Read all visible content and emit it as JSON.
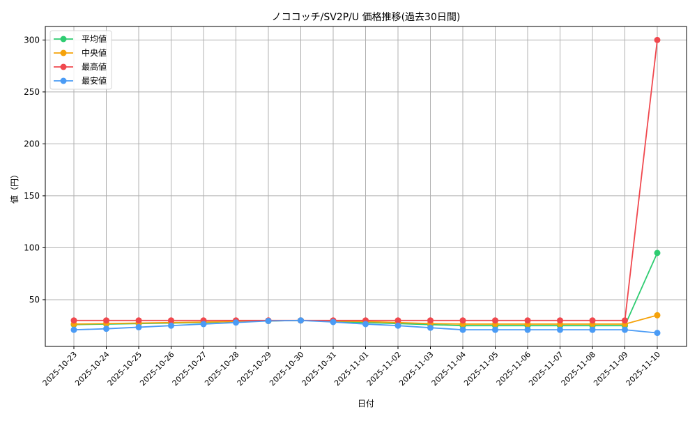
{
  "chart_data": {
    "type": "line",
    "title": "ノココッチ/SV2P/U 価格推移(過去30日間)",
    "xlabel": "日付",
    "ylabel": "値（円）",
    "ylim": [
      5,
      313
    ],
    "yticks": [
      50,
      100,
      150,
      200,
      250,
      300
    ],
    "grid": true,
    "legend_position": "upper left",
    "categories": [
      "2025-10-23",
      "2025-10-24",
      "2025-10-25",
      "2025-10-26",
      "2025-10-27",
      "2025-10-28",
      "2025-10-29",
      "2025-10-30",
      "2025-10-31",
      "2025-11-01",
      "2025-11-02",
      "2025-11-03",
      "2025-11-04",
      "2025-11-05",
      "2025-11-06",
      "2025-11-07",
      "2025-11-08",
      "2025-11-09",
      "2025-11-10"
    ],
    "series": [
      {
        "name": "平均値",
        "color": "#2ecc71",
        "values": [
          26,
          26.5,
          27,
          27.5,
          28,
          29,
          29.5,
          30,
          29,
          28,
          27,
          26,
          25,
          25,
          25,
          25,
          25,
          25,
          95
        ]
      },
      {
        "name": "中央値",
        "color": "#f5a20a",
        "values": [
          26.5,
          27,
          27.5,
          28,
          28.5,
          29,
          29.5,
          30,
          29.5,
          29,
          28,
          27,
          26.5,
          26.5,
          26.5,
          26.5,
          26.5,
          26.5,
          35
        ]
      },
      {
        "name": "最高値",
        "color": "#f0484e",
        "values": [
          30,
          30,
          30,
          30,
          30,
          30,
          30,
          30,
          30,
          30,
          30,
          30,
          30,
          30,
          30,
          30,
          30,
          30,
          300
        ]
      },
      {
        "name": "最安値",
        "color": "#4a9bf5",
        "values": [
          21,
          22,
          23.5,
          25,
          26.5,
          28,
          29.5,
          30,
          28.5,
          26.5,
          25,
          23,
          21,
          21,
          21,
          21,
          21,
          21,
          18
        ]
      }
    ]
  }
}
